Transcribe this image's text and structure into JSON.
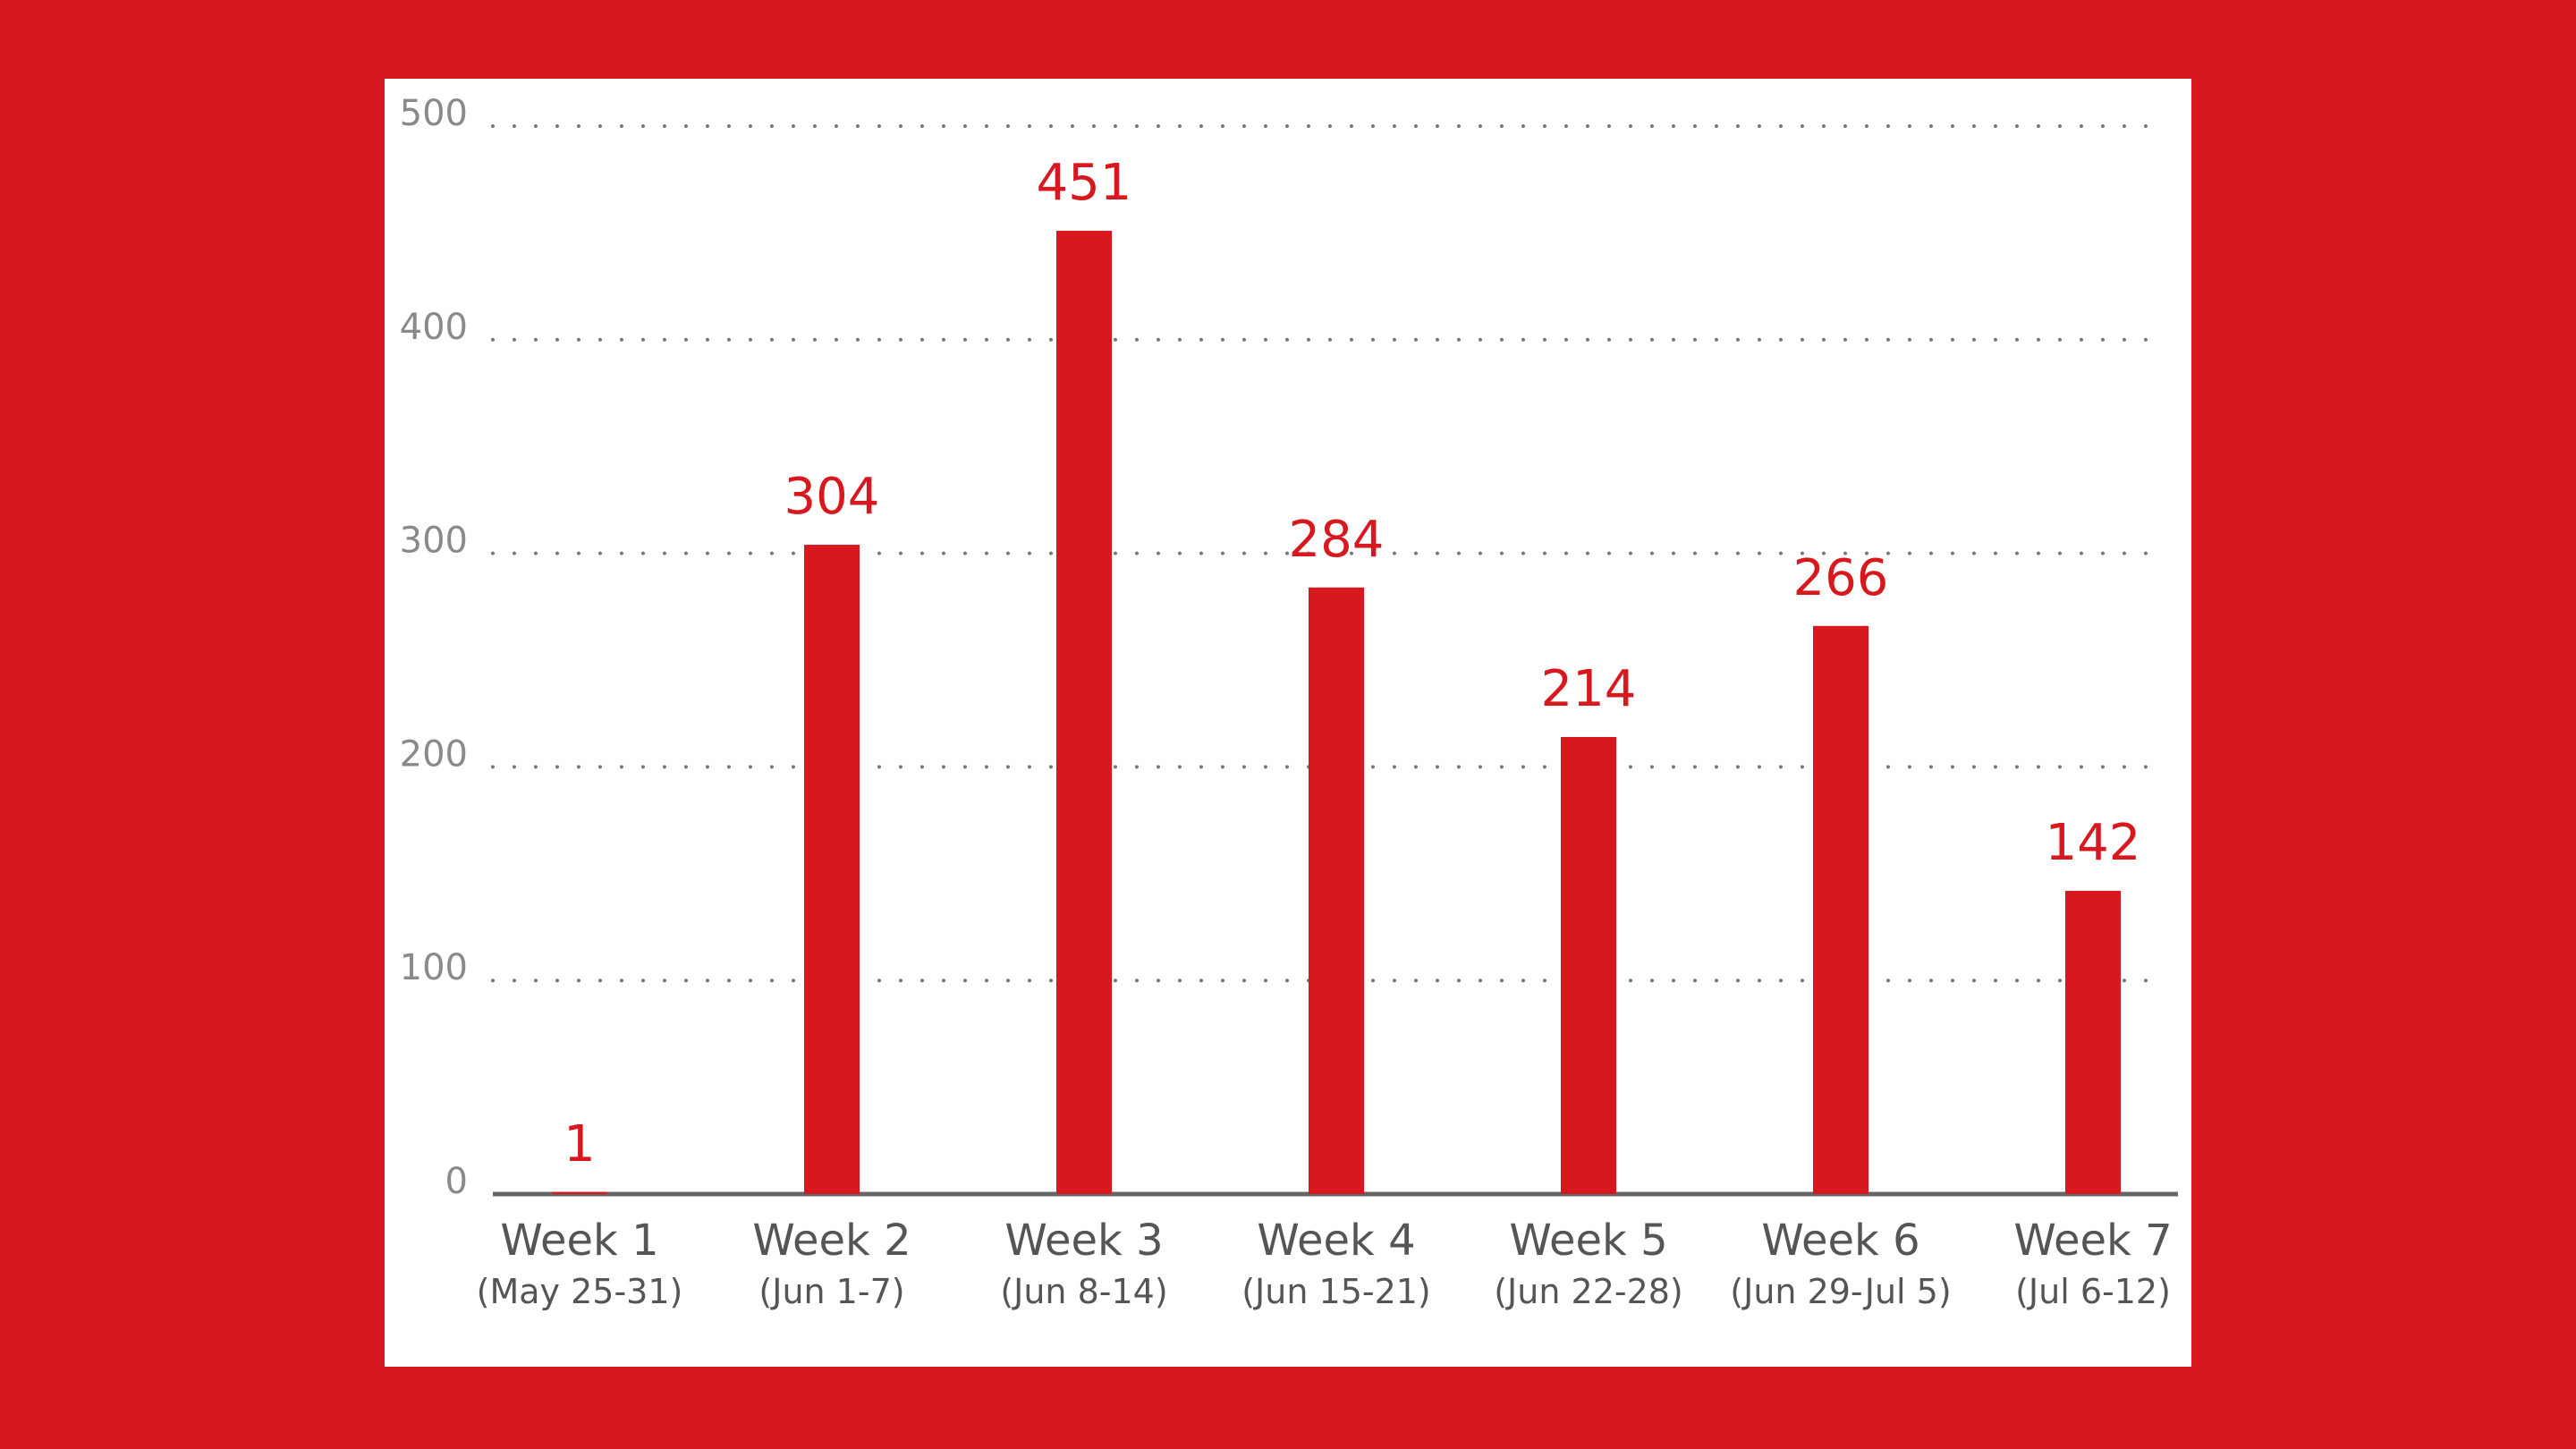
{
  "chart_data": {
    "type": "bar",
    "categories": [
      "Week 1",
      "Week 2",
      "Week 3",
      "Week 4",
      "Week 5",
      "Week 6",
      "Week 7"
    ],
    "date_ranges": [
      "(May 25-31)",
      "(Jun 1-7)",
      "(Jun 8-14)",
      "(Jun 15-21)",
      "(Jun 22-28)",
      "(Jun 29-Jul 5)",
      "(Jul 6-12)"
    ],
    "values": [
      1,
      304,
      451,
      284,
      214,
      266,
      142
    ],
    "color": "#d7191f",
    "ylim": [
      0,
      500
    ],
    "yticks": [
      0,
      100,
      200,
      300,
      400,
      500
    ],
    "grid": true
  }
}
